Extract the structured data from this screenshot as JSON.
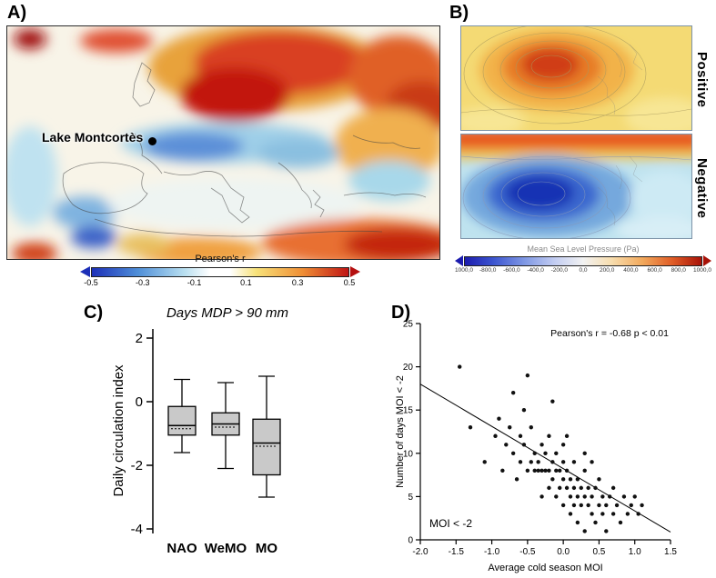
{
  "figure": {
    "panel_a": {
      "label": "A)",
      "marker_label": "Lake Montcortès",
      "colorbar": {
        "title": "Pearson's r",
        "ticks": [
          "-0.5",
          "-0.3",
          "-0.1",
          "0.1",
          "0.3",
          "0.5"
        ]
      }
    },
    "panel_b": {
      "label": "B)",
      "map_labels": [
        "Positive",
        "Negative"
      ],
      "colorbar": {
        "title": "Mean Sea Level Pressure (Pa)",
        "ticks": [
          "1000,0",
          "-800,0",
          "-600,0",
          "-400,0",
          "-200,0",
          "0,0",
          "200,0",
          "400,0",
          "600,0",
          "800,0",
          "1000,0"
        ]
      }
    },
    "panel_c": {
      "label": "C)"
    },
    "panel_d": {
      "label": "D)"
    }
  },
  "chart_data": [
    {
      "type": "box",
      "title": "Days MDP > 90 mm",
      "ylabel": "Daily circulation index",
      "ylim": [
        -4.6,
        2.3
      ],
      "yticks": [
        2,
        0,
        -2,
        -4
      ],
      "categories": [
        "NAO",
        "WeMO",
        "MO"
      ],
      "box_fill": "#c9c9c9",
      "boxes": [
        {
          "whisker_low": -1.6,
          "q1": -1.05,
          "median": -0.75,
          "mean": -0.85,
          "q3": -0.15,
          "whisker_high": 0.7
        },
        {
          "whisker_low": -2.1,
          "q1": -1.05,
          "median": -0.7,
          "mean": -0.8,
          "q3": -0.35,
          "whisker_high": 0.6
        },
        {
          "whisker_low": -3.0,
          "q1": -2.3,
          "median": -1.3,
          "mean": -1.4,
          "q3": -0.55,
          "whisker_high": 0.8
        }
      ]
    },
    {
      "type": "scatter",
      "xlabel": "Average cold season MOI",
      "ylabel": "Number of days MOI < -2",
      "xlim": [
        -2.0,
        1.5
      ],
      "ylim": [
        0,
        25
      ],
      "xticks": [
        "-2.0",
        "-1.5",
        "-1.0",
        "-0.5",
        "0.0",
        "0.5",
        "1.0",
        "1.5"
      ],
      "yticks": [
        0,
        5,
        10,
        15,
        20,
        25
      ],
      "annotation": "Pearson's r = -0.68 p < 0.01",
      "corner_label": "MOI < -2",
      "trendline": {
        "x": [
          -2.0,
          1.5
        ],
        "y": [
          18.0,
          0.9
        ]
      },
      "points": [
        [
          -1.45,
          20
        ],
        [
          -1.3,
          13
        ],
        [
          -1.1,
          9
        ],
        [
          -0.95,
          12
        ],
        [
          -0.9,
          14
        ],
        [
          -0.85,
          8
        ],
        [
          -0.8,
          11
        ],
        [
          -0.75,
          13
        ],
        [
          -0.7,
          17
        ],
        [
          -0.7,
          10
        ],
        [
          -0.65,
          7
        ],
        [
          -0.6,
          12
        ],
        [
          -0.6,
          9
        ],
        [
          -0.55,
          15
        ],
        [
          -0.55,
          11
        ],
        [
          -0.5,
          19
        ],
        [
          -0.5,
          8
        ],
        [
          -0.45,
          13
        ],
        [
          -0.45,
          9
        ],
        [
          -0.4,
          10
        ],
        [
          -0.4,
          8
        ],
        [
          -0.35,
          9
        ],
        [
          -0.35,
          8
        ],
        [
          -0.3,
          11
        ],
        [
          -0.3,
          8
        ],
        [
          -0.3,
          5
        ],
        [
          -0.25,
          10
        ],
        [
          -0.25,
          8
        ],
        [
          -0.2,
          12
        ],
        [
          -0.2,
          8
        ],
        [
          -0.2,
          6
        ],
        [
          -0.15,
          16
        ],
        [
          -0.15,
          9
        ],
        [
          -0.15,
          7
        ],
        [
          -0.1,
          10
        ],
        [
          -0.1,
          8
        ],
        [
          -0.1,
          5
        ],
        [
          -0.05,
          8
        ],
        [
          -0.05,
          6
        ],
        [
          0,
          11
        ],
        [
          0,
          9
        ],
        [
          0,
          7
        ],
        [
          0,
          4
        ],
        [
          0.05,
          12
        ],
        [
          0.05,
          8
        ],
        [
          0.05,
          6
        ],
        [
          0.1,
          7
        ],
        [
          0.1,
          5
        ],
        [
          0.1,
          3
        ],
        [
          0.15,
          9
        ],
        [
          0.15,
          6
        ],
        [
          0.15,
          4
        ],
        [
          0.2,
          7
        ],
        [
          0.2,
          5
        ],
        [
          0.2,
          2
        ],
        [
          0.25,
          6
        ],
        [
          0.25,
          4
        ],
        [
          0.3,
          10
        ],
        [
          0.3,
          8
        ],
        [
          0.3,
          5
        ],
        [
          0.3,
          1
        ],
        [
          0.35,
          6
        ],
        [
          0.35,
          4
        ],
        [
          0.4,
          9
        ],
        [
          0.4,
          5
        ],
        [
          0.4,
          3
        ],
        [
          0.45,
          6
        ],
        [
          0.45,
          2
        ],
        [
          0.5,
          7
        ],
        [
          0.5,
          4
        ],
        [
          0.55,
          5
        ],
        [
          0.55,
          3
        ],
        [
          0.6,
          4
        ],
        [
          0.6,
          1
        ],
        [
          0.65,
          5
        ],
        [
          0.7,
          6
        ],
        [
          0.7,
          3
        ],
        [
          0.75,
          4
        ],
        [
          0.8,
          2
        ],
        [
          0.85,
          5
        ],
        [
          0.9,
          3
        ],
        [
          0.95,
          4
        ],
        [
          1.0,
          5
        ],
        [
          1.05,
          3
        ],
        [
          1.1,
          4
        ]
      ]
    }
  ]
}
